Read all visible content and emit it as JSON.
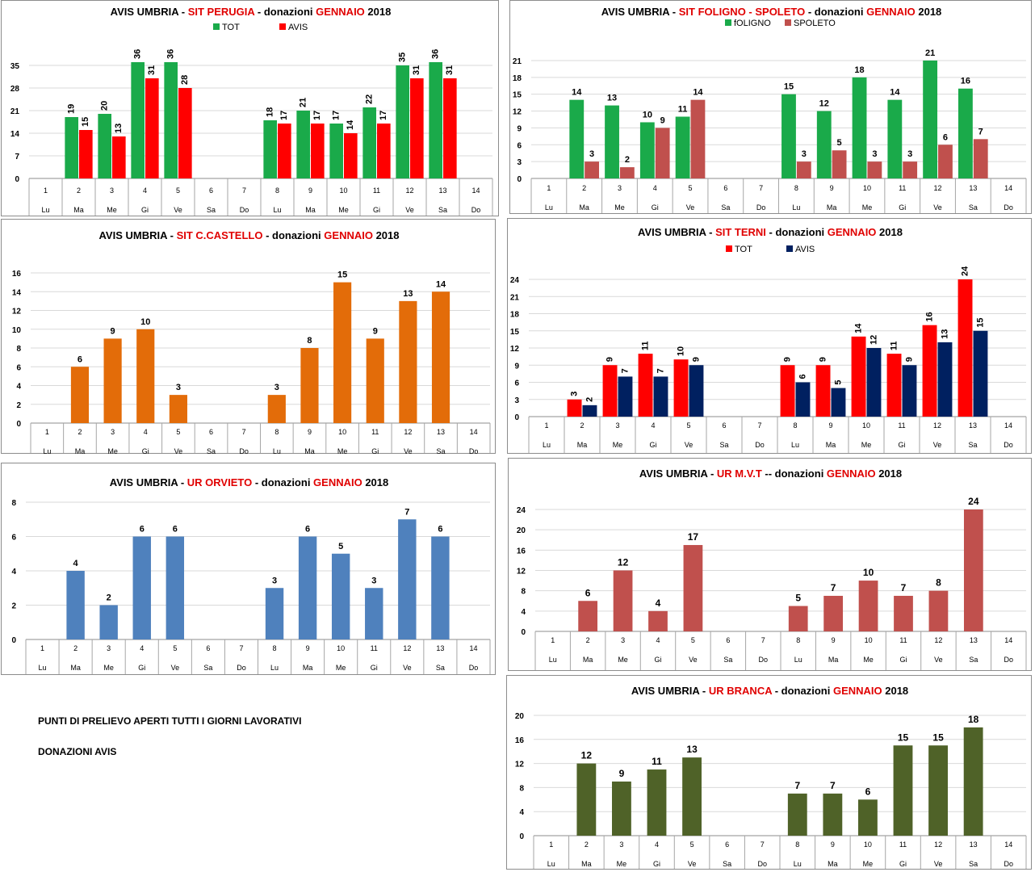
{
  "notes": {
    "line1": "PUNTI DI PRELIEVO APERTI TUTTI I GIORNI LAVORATIVI",
    "line2": "DONAZIONI AVIS"
  },
  "chart_data": [
    {
      "id": "perugia",
      "type": "bar",
      "title_parts": [
        {
          "text": "AVIS UMBRIA - ",
          "color": "#000000"
        },
        {
          "text": "SIT PERUGIA",
          "color": "#e00000"
        },
        {
          "text": " - donazioni  ",
          "color": "#000000"
        },
        {
          "text": "GENNAIO",
          "color": "#e00000"
        },
        {
          "text": " 2018",
          "color": "#000000"
        }
      ],
      "categories": [
        "1",
        "2",
        "3",
        "4",
        "5",
        "6",
        "7",
        "8",
        "9",
        "10",
        "11",
        "12",
        "13",
        "14"
      ],
      "days": [
        "Lu",
        "Ma",
        "Me",
        "Gi",
        "Ve",
        "Sa",
        "Do",
        "Lu",
        "Ma",
        "Me",
        "Gi",
        "Ve",
        "Sa",
        "Do"
      ],
      "yticks": [
        0,
        7,
        14,
        21,
        28,
        35
      ],
      "ylim": [
        0,
        40
      ],
      "label_rotated": true,
      "series": [
        {
          "name": "TOT",
          "color": "#1aaa4a",
          "values": [
            null,
            19,
            20,
            36,
            36,
            null,
            null,
            18,
            21,
            17,
            22,
            35,
            36,
            null
          ]
        },
        {
          "name": "AVIS",
          "color": "#ff0000",
          "values": [
            null,
            15,
            13,
            31,
            28,
            null,
            null,
            17,
            17,
            14,
            17,
            31,
            31,
            null
          ]
        }
      ]
    },
    {
      "id": "foligno-spoleto",
      "type": "bar",
      "title_parts": [
        {
          "text": "AVIS UMBRIA  -  ",
          "color": "#000000"
        },
        {
          "text": "SIT FOLIGNO  - SPOLETO",
          "color": "#e00000"
        },
        {
          "text": " - donazioni  ",
          "color": "#000000"
        },
        {
          "text": "GENNAIO",
          "color": "#e00000"
        },
        {
          "text": " 2018",
          "color": "#000000"
        }
      ],
      "categories": [
        "1",
        "2",
        "3",
        "4",
        "5",
        "6",
        "7",
        "8",
        "9",
        "10",
        "11",
        "12",
        "13",
        "14"
      ],
      "days": [
        "Lu",
        "Ma",
        "Me",
        "Gi",
        "Ve",
        "Sa",
        "Do",
        "Lu",
        "Ma",
        "Me",
        "Gi",
        "Ve",
        "Sa",
        "Do"
      ],
      "yticks": [
        0,
        3,
        6,
        9,
        12,
        15,
        18,
        21
      ],
      "ylim": [
        0,
        22
      ],
      "label_rotated": false,
      "series": [
        {
          "name": "fOLIGNO",
          "color": "#1aaa4a",
          "values": [
            null,
            14,
            13,
            10,
            11,
            null,
            null,
            15,
            12,
            18,
            14,
            21,
            16,
            null
          ]
        },
        {
          "name": "SPOLETO",
          "color": "#c0504d",
          "values": [
            null,
            3,
            2,
            9,
            14,
            null,
            null,
            3,
            5,
            3,
            3,
            6,
            7,
            null
          ]
        }
      ]
    },
    {
      "id": "castello",
      "type": "bar",
      "title_parts": [
        {
          "text": "AVIS UMBRIA  -  ",
          "color": "#000000"
        },
        {
          "text": "SIT C.CASTELLO",
          "color": "#e00000"
        },
        {
          "text": "  - donazioni  ",
          "color": "#000000"
        },
        {
          "text": "GENNAIO",
          "color": "#e00000"
        },
        {
          "text": " 2018",
          "color": "#000000"
        }
      ],
      "categories": [
        "1",
        "2",
        "3",
        "4",
        "5",
        "6",
        "7",
        "8",
        "9",
        "10",
        "11",
        "12",
        "13",
        "14"
      ],
      "days": [
        "Lu",
        "Ma",
        "Me",
        "Gi",
        "Ve",
        "Sa",
        "Do",
        "Lu",
        "Ma",
        "Me",
        "Gi",
        "Ve",
        "Sa",
        "Do"
      ],
      "yticks": [
        0,
        2,
        4,
        6,
        8,
        10,
        12,
        14,
        16
      ],
      "ylim": [
        0,
        16
      ],
      "label_rotated": false,
      "series": [
        {
          "color": "#e36c09",
          "values": [
            null,
            6,
            9,
            10,
            3,
            null,
            null,
            3,
            8,
            15,
            9,
            13,
            14,
            null
          ]
        }
      ]
    },
    {
      "id": "terni",
      "type": "bar",
      "title_parts": [
        {
          "text": "AVIS UMBRIA  -  ",
          "color": "#000000"
        },
        {
          "text": "SIT  TERNI",
          "color": "#e00000"
        },
        {
          "text": " - donazioni ",
          "color": "#000000"
        },
        {
          "text": "GENNAIO",
          "color": "#e00000"
        },
        {
          "text": " 2018",
          "color": "#000000"
        }
      ],
      "categories": [
        "1",
        "2",
        "3",
        "4",
        "5",
        "6",
        "7",
        "8",
        "9",
        "10",
        "11",
        "12",
        "13",
        "14"
      ],
      "days": [
        "Lu",
        "Ma",
        "Me",
        "Gi",
        "Ve",
        "Sa",
        "Do",
        "Lu",
        "Ma",
        "Me",
        "Gi",
        "Ve",
        "Sa",
        "Do"
      ],
      "yticks": [
        0,
        3,
        6,
        9,
        12,
        15,
        18,
        21,
        24
      ],
      "ylim": [
        0,
        24
      ],
      "label_rotated": true,
      "series": [
        {
          "name": "TOT",
          "color": "#ff0000",
          "values": [
            null,
            3,
            9,
            11,
            10,
            null,
            null,
            9,
            9,
            14,
            11,
            16,
            24,
            null
          ]
        },
        {
          "name": "AVIS",
          "color": "#002060",
          "values": [
            null,
            2,
            7,
            7,
            9,
            null,
            null,
            6,
            5,
            12,
            9,
            13,
            15,
            null
          ]
        }
      ]
    },
    {
      "id": "orvieto",
      "type": "bar",
      "title_parts": [
        {
          "text": "AVIS UMBRIA  -  ",
          "color": "#000000"
        },
        {
          "text": "UR ORVIETO",
          "color": "#e00000"
        },
        {
          "text": " - donazioni  ",
          "color": "#000000"
        },
        {
          "text": "GENNAIO",
          "color": "#e00000"
        },
        {
          "text": " 2018",
          "color": "#000000"
        }
      ],
      "categories": [
        "1",
        "2",
        "3",
        "4",
        "5",
        "6",
        "7",
        "8",
        "9",
        "10",
        "11",
        "12",
        "13",
        "14"
      ],
      "days": [
        "Lu",
        "Ma",
        "Me",
        "Gi",
        "Ve",
        "Sa",
        "Do",
        "Lu",
        "Ma",
        "Me",
        "Gi",
        "Ve",
        "Sa",
        "Do"
      ],
      "yticks": [
        0,
        2,
        4,
        6,
        8
      ],
      "ylim": [
        0,
        8
      ],
      "label_rotated": false,
      "series": [
        {
          "color": "#4f81bd",
          "values": [
            null,
            4,
            2,
            6,
            6,
            null,
            null,
            3,
            6,
            5,
            3,
            7,
            6,
            null
          ]
        }
      ]
    },
    {
      "id": "mvt",
      "type": "bar",
      "title_parts": [
        {
          "text": "AVIS UMBRIA  -  ",
          "color": "#000000"
        },
        {
          "text": "UR M.V.T",
          "color": "#e00000"
        },
        {
          "text": " -- donazioni  ",
          "color": "#000000"
        },
        {
          "text": "GENNAIO",
          "color": "#e00000"
        },
        {
          "text": " 2018",
          "color": "#000000"
        }
      ],
      "categories": [
        "1",
        "2",
        "3",
        "4",
        "5",
        "6",
        "7",
        "8",
        "9",
        "10",
        "11",
        "12",
        "13",
        "14"
      ],
      "days": [
        "Lu",
        "Ma",
        "Me",
        "Gi",
        "Ve",
        "Sa",
        "Do",
        "Lu",
        "Ma",
        "Me",
        "Gi",
        "Ve",
        "Sa",
        "Do"
      ],
      "yticks": [
        0,
        4,
        8,
        12,
        16,
        20,
        24
      ],
      "ylim": [
        0,
        24
      ],
      "label_rotated": false,
      "series": [
        {
          "color": "#c0504d",
          "values": [
            null,
            6,
            12,
            4,
            17,
            null,
            null,
            5,
            7,
            10,
            7,
            8,
            24,
            null
          ]
        }
      ]
    },
    {
      "id": "branca",
      "type": "bar",
      "title_parts": [
        {
          "text": "AVIS UMBRIA - ",
          "color": "#000000"
        },
        {
          "text": "UR BRANCA",
          "color": "#e00000"
        },
        {
          "text": " - donazioni  ",
          "color": "#000000"
        },
        {
          "text": "GENNAIO",
          "color": "#e00000"
        },
        {
          "text": " 2018",
          "color": "#000000"
        }
      ],
      "categories": [
        "1",
        "2",
        "3",
        "4",
        "5",
        "6",
        "7",
        "8",
        "9",
        "10",
        "11",
        "12",
        "13",
        "14"
      ],
      "days": [
        "Lu",
        "Ma",
        "Me",
        "Gi",
        "Ve",
        "Sa",
        "Do",
        "Lu",
        "Ma",
        "Me",
        "Gi",
        "Ve",
        "Sa",
        "Do"
      ],
      "yticks": [
        0,
        4,
        8,
        12,
        16,
        20
      ],
      "ylim": [
        0,
        20
      ],
      "label_rotated": false,
      "series": [
        {
          "color": "#4f6228",
          "values": [
            null,
            12,
            9,
            11,
            13,
            null,
            null,
            7,
            7,
            6,
            15,
            15,
            18,
            null
          ]
        }
      ]
    }
  ]
}
